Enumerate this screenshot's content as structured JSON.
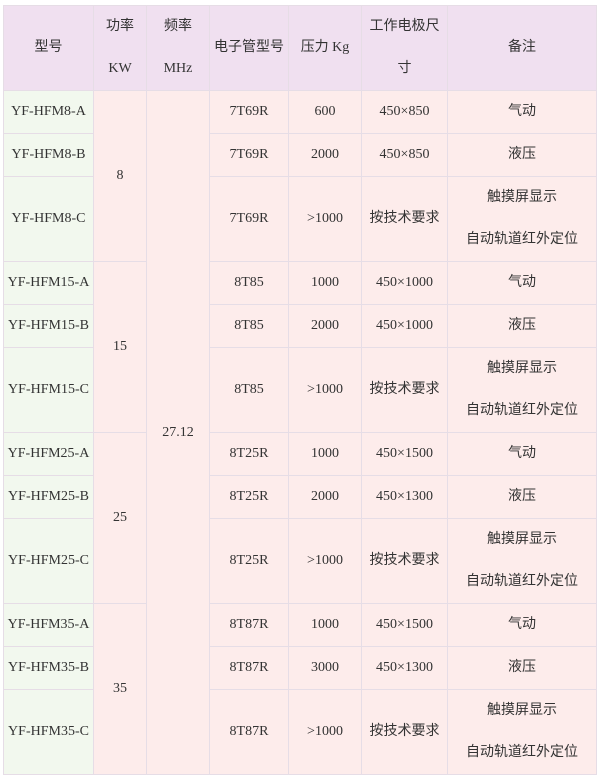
{
  "header": {
    "model": "型号",
    "power": [
      "功率",
      "KW"
    ],
    "freq": [
      "频率",
      "MHz"
    ],
    "tube": "电子管型号",
    "pressure": "压力 Kg",
    "electrode": [
      "工作电极尺",
      "寸"
    ],
    "note": "备注"
  },
  "frequency": "27.12",
  "groups": [
    {
      "power": "8",
      "rows": [
        {
          "model": "YF-HFM8-A",
          "tube": "7T69R",
          "pressure": "600",
          "size": "450×850",
          "note": [
            "气动"
          ]
        },
        {
          "model": "YF-HFM8-B",
          "tube": "7T69R",
          "pressure": "2000",
          "size": "450×850",
          "note": [
            "液压"
          ]
        },
        {
          "model": "YF-HFM8-C",
          "tube": "7T69R",
          "pressure": ">1000",
          "size": "按技术要求",
          "note": [
            "触摸屏显示",
            "自动轨道红外定位"
          ]
        }
      ]
    },
    {
      "power": "15",
      "rows": [
        {
          "model": "YF-HFM15-A",
          "tube": "8T85",
          "pressure": "1000",
          "size": "450×1000",
          "note": [
            "气动"
          ]
        },
        {
          "model": "YF-HFM15-B",
          "tube": "8T85",
          "pressure": "2000",
          "size": "450×1000",
          "note": [
            "液压"
          ]
        },
        {
          "model": "YF-HFM15-C",
          "tube": "8T85",
          "pressure": ">1000",
          "size": "按技术要求",
          "note": [
            "触摸屏显示",
            "自动轨道红外定位"
          ]
        }
      ]
    },
    {
      "power": "25",
      "rows": [
        {
          "model": "YF-HFM25-A",
          "tube": "8T25R",
          "pressure": "1000",
          "size": "450×1500",
          "note": [
            "气动"
          ]
        },
        {
          "model": "YF-HFM25-B",
          "tube": "8T25R",
          "pressure": "2000",
          "size": "450×1300",
          "note": [
            "液压"
          ]
        },
        {
          "model": "YF-HFM25-C",
          "tube": "8T25R",
          "pressure": ">1000",
          "size": "按技术要求",
          "note": [
            "触摸屏显示",
            "自动轨道红外定位"
          ]
        }
      ]
    },
    {
      "power": "35",
      "rows": [
        {
          "model": "YF-HFM35-A",
          "tube": "8T87R",
          "pressure": "1000",
          "size": "450×1500",
          "note": [
            "气动"
          ]
        },
        {
          "model": "YF-HFM35-B",
          "tube": "8T87R",
          "pressure": "3000",
          "size": "450×1300",
          "note": [
            "液压"
          ]
        },
        {
          "model": "YF-HFM35-C",
          "tube": "8T87R",
          "pressure": ">1000",
          "size": "按技术要求",
          "note": [
            "触摸屏显示",
            "自动轨道红外定位"
          ]
        }
      ]
    }
  ]
}
